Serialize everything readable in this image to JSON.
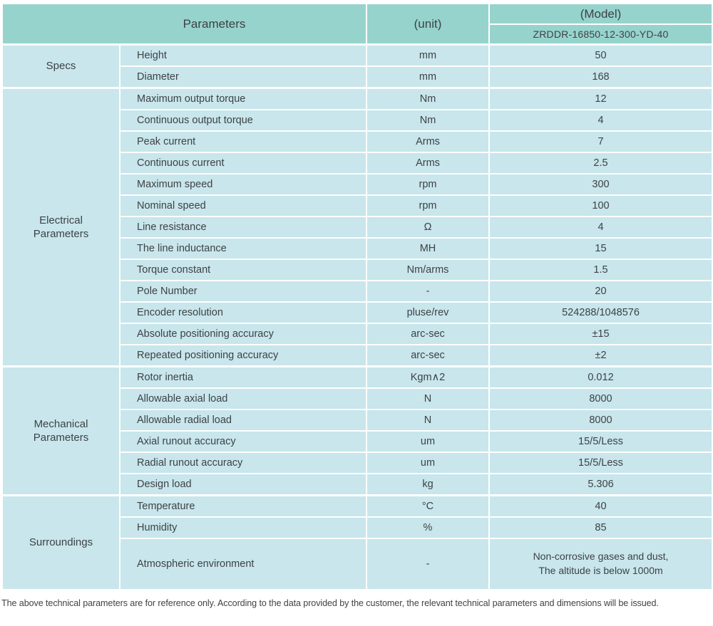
{
  "header": {
    "parameters_label": "Parameters",
    "unit_label": "(unit)",
    "model_label": "(Model)",
    "model_value": "ZRDDR-16850-12-300-YD-40"
  },
  "groups": [
    {
      "label": "Specs",
      "rows": [
        {
          "name": "Height",
          "unit": "mm",
          "value": "50"
        },
        {
          "name": "Diameter",
          "unit": "mm",
          "value": "168"
        }
      ]
    },
    {
      "label": "Electrical\nParameters",
      "rows": [
        {
          "name": "Maximum output torque",
          "unit": "Nm",
          "value": "12"
        },
        {
          "name": "Continuous output torque",
          "unit": "Nm",
          "value": "4"
        },
        {
          "name": "Peak current",
          "unit": "Arms",
          "value": "7"
        },
        {
          "name": "Continuous current",
          "unit": "Arms",
          "value": "2.5"
        },
        {
          "name": "Maximum speed",
          "unit": "rpm",
          "value": "300"
        },
        {
          "name": "Nominal speed",
          "unit": "rpm",
          "value": "100"
        },
        {
          "name": "Line resistance",
          "unit": "Ω",
          "value": "4"
        },
        {
          "name": "The line inductance",
          "unit": "MH",
          "value": "15"
        },
        {
          "name": "Torque constant",
          "unit": "Nm/arms",
          "value": "1.5"
        },
        {
          "name": "Pole Number",
          "unit": "-",
          "value": "20"
        },
        {
          "name": "Encoder resolution",
          "unit": "pluse/rev",
          "value": "524288/1048576"
        },
        {
          "name": "Absolute positioning accuracy",
          "unit": "arc-sec",
          "value": "±15"
        },
        {
          "name": "Repeated positioning accuracy",
          "unit": "arc-sec",
          "value": "±2"
        }
      ]
    },
    {
      "label": "Mechanical\nParameters",
      "rows": [
        {
          "name": "Rotor inertia",
          "unit": "Kgm∧2",
          "value": "0.012"
        },
        {
          "name": "Allowable axial load",
          "unit": "N",
          "value": "8000"
        },
        {
          "name": "Allowable radial load",
          "unit": "N",
          "value": "8000"
        },
        {
          "name": "Axial runout accuracy",
          "unit": "um",
          "value": "15/5/Less"
        },
        {
          "name": "Radial runout accuracy",
          "unit": "um",
          "value": "15/5/Less"
        },
        {
          "name": "Design load",
          "unit": "kg",
          "value": "5.306"
        }
      ]
    },
    {
      "label": "Surroundings",
      "rows": [
        {
          "name": "Temperature",
          "unit": "°C",
          "value": "40"
        },
        {
          "name": "Humidity",
          "unit": "%",
          "value": "85"
        },
        {
          "name": "Atmospheric environment",
          "unit": "-",
          "value": "Non-corrosive gases and dust,\nThe altitude is below 1000m"
        }
      ]
    }
  ],
  "footnote": "The above technical parameters are for reference only. According to the data provided by the customer, the relevant technical parameters and dimensions will be issued.",
  "colors": {
    "header_bg": "#96d3cc",
    "cell_bg": "#c8e6ec",
    "separator": "#ffffff",
    "text": "#3d4245"
  }
}
